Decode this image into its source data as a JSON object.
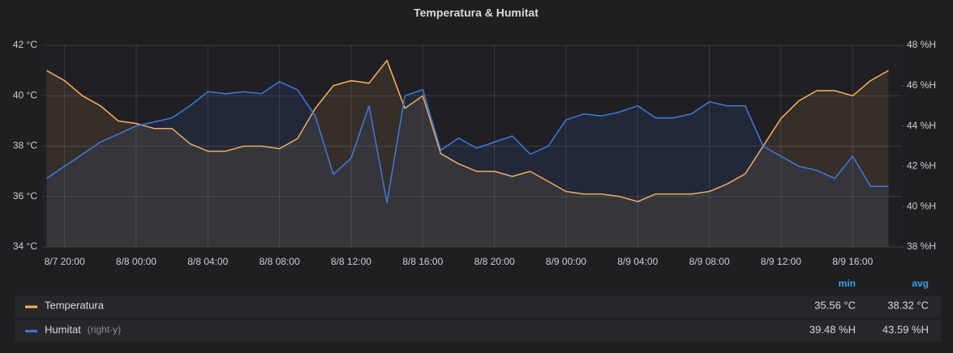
{
  "chart_data": {
    "type": "line",
    "title": "Temperatura & Humitat",
    "x": [
      "8/7 19:00",
      "8/7 20:00",
      "8/7 21:00",
      "8/7 22:00",
      "8/7 23:00",
      "8/8 00:00",
      "8/8 01:00",
      "8/8 02:00",
      "8/8 03:00",
      "8/8 04:00",
      "8/8 05:00",
      "8/8 06:00",
      "8/8 07:00",
      "8/8 08:00",
      "8/8 09:00",
      "8/8 10:00",
      "8/8 11:00",
      "8/8 12:00",
      "8/8 13:00",
      "8/8 14:00",
      "8/8 15:00",
      "8/8 16:00",
      "8/8 17:00",
      "8/8 18:00",
      "8/8 19:00",
      "8/8 20:00",
      "8/8 21:00",
      "8/8 22:00",
      "8/8 23:00",
      "8/9 00:00",
      "8/9 01:00",
      "8/9 02:00",
      "8/9 03:00",
      "8/9 04:00",
      "8/9 05:00",
      "8/9 06:00",
      "8/9 07:00",
      "8/9 08:00",
      "8/9 09:00",
      "8/9 10:00",
      "8/9 11:00",
      "8/9 12:00",
      "8/9 13:00",
      "8/9 14:00",
      "8/9 15:00",
      "8/9 16:00",
      "8/9 17:00",
      "8/9 18:00"
    ],
    "series": [
      {
        "name": "Temperatura",
        "color": "#ffb357",
        "axis": "y",
        "values": [
          41.0,
          40.6,
          40.0,
          39.6,
          39.0,
          38.9,
          38.7,
          38.7,
          38.1,
          37.8,
          37.8,
          38.0,
          38.0,
          37.9,
          38.3,
          39.5,
          40.4,
          40.6,
          40.5,
          41.4,
          39.5,
          40.0,
          37.7,
          37.3,
          37.0,
          37.0,
          36.8,
          37.0,
          36.6,
          36.2,
          36.1,
          36.1,
          36.0,
          35.8,
          36.1,
          36.1,
          36.1,
          36.2,
          36.5,
          36.9,
          38.0,
          39.1,
          39.8,
          40.2,
          40.2,
          40.0,
          40.6,
          41.0
        ],
        "min": "35.56 °C",
        "avg": "38.32 °C"
      },
      {
        "name": "Humitat",
        "color": "#3d7ae0",
        "axis": "y2",
        "legend_suffix": "(right-y)",
        "values": [
          41.4,
          42.0,
          42.6,
          43.2,
          43.6,
          44.0,
          44.2,
          44.4,
          45.0,
          45.7,
          45.6,
          45.7,
          45.6,
          46.2,
          45.8,
          44.5,
          41.6,
          42.4,
          45.0,
          40.2,
          45.5,
          45.8,
          42.8,
          43.4,
          42.9,
          43.2,
          43.5,
          42.6,
          43.0,
          44.3,
          44.6,
          44.5,
          44.7,
          45.0,
          44.4,
          44.4,
          44.6,
          45.2,
          45.0,
          45.0,
          43.0,
          42.5,
          42.0,
          41.8,
          41.4,
          42.5,
          41.0,
          41.0
        ],
        "min": "39.48 %H",
        "avg": "43.59 %H"
      }
    ],
    "xlim": [
      "8/7 18:45",
      "8/9 18:45"
    ],
    "xticks": [
      "8/7 20:00",
      "8/8 00:00",
      "8/8 04:00",
      "8/8 08:00",
      "8/8 12:00",
      "8/8 16:00",
      "8/8 20:00",
      "8/9 00:00",
      "8/9 04:00",
      "8/9 08:00",
      "8/9 12:00",
      "8/9 16:00"
    ],
    "ylim": [
      34,
      42
    ],
    "yticks": [
      {
        "value": 34,
        "label": "34 °C"
      },
      {
        "value": 36,
        "label": "36 °C"
      },
      {
        "value": 38,
        "label": "38 °C"
      },
      {
        "value": 40,
        "label": "40 °C"
      },
      {
        "value": 42,
        "label": "42 °C"
      }
    ],
    "y2lim": [
      38,
      48
    ],
    "y2ticks": [
      {
        "value": 38,
        "label": "38 %H"
      },
      {
        "value": 40,
        "label": "40 %H"
      },
      {
        "value": 42,
        "label": "42 %H"
      },
      {
        "value": 44,
        "label": "44 %H"
      },
      {
        "value": 46,
        "label": "46 %H"
      },
      {
        "value": 48,
        "label": "48 %H"
      }
    ],
    "grid": true,
    "legend_columns": [
      "min",
      "avg"
    ]
  }
}
